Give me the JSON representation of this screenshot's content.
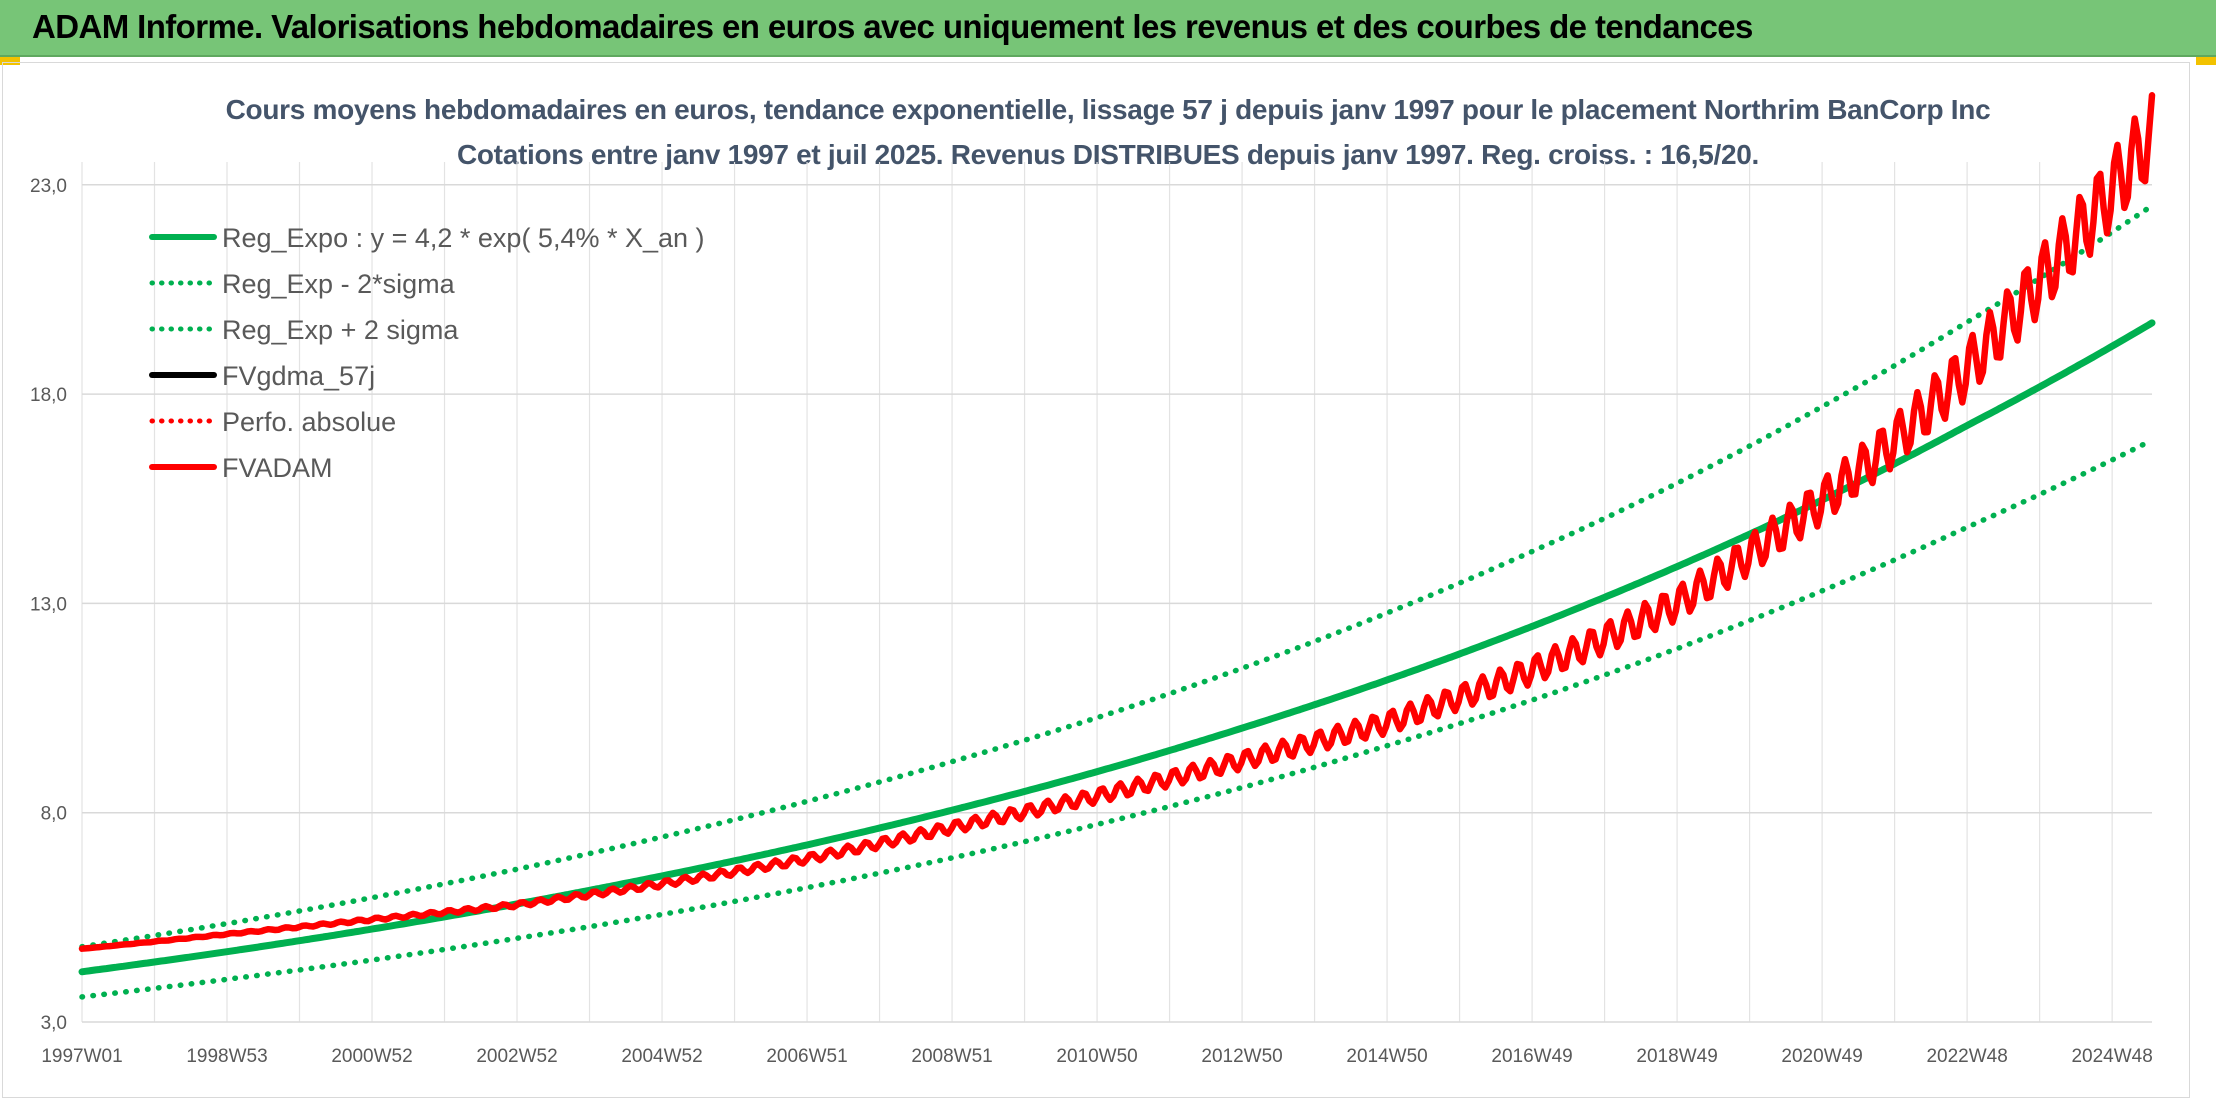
{
  "header": {
    "title": "ADAM Informe. Valorisations hebdomadaires en euros avec uniquement les revenus et des courbes de tendances"
  },
  "chart_data": {
    "type": "line",
    "title": "Cours moyens hebdomadaires en euros, tendance exponentielle, lissage 57 j depuis janv 1997 pour le placement Northrim BanCorp Inc",
    "subtitle": "Cotations entre janv 1997 et juil 2025. Revenus DISTRIBUES depuis janv 1997. Reg. croiss. : 16,5/20.",
    "xlabel": "",
    "ylabel": "",
    "x_range": [
      1997.0,
      2025.55
    ],
    "ylim": [
      3.0,
      24.5
    ],
    "y_ticks": [
      "3,0",
      "8,0",
      "13,0",
      "18,0",
      "23,0"
    ],
    "y_tick_values": [
      3,
      8,
      13,
      18,
      23
    ],
    "x_ticks": [
      "1997W01",
      "1998W53",
      "2000W52",
      "2002W52",
      "2004W52",
      "2006W51",
      "2008W51",
      "2010W50",
      "2012W50",
      "2014W50",
      "2016W49",
      "2018W49",
      "2020W49",
      "2022W48",
      "2024W48"
    ],
    "x_tick_values": [
      1997.0,
      1999.0,
      2001.0,
      2003.0,
      2005.0,
      2007.0,
      2009.0,
      2011.0,
      2013.0,
      2015.0,
      2017.0,
      2019.0,
      2021.0,
      2023.0,
      2025.0
    ],
    "grid": true,
    "legend_position": "top-left",
    "series": [
      {
        "name": "Reg_Expo : y = 4,2 * exp( 5,4% *  X_an )",
        "color": "#00b050",
        "style": "solid",
        "x": [
          1997,
          1999,
          2001,
          2003,
          2005,
          2007,
          2009,
          2011,
          2013,
          2015,
          2017,
          2019,
          2021,
          2023,
          2025.55
        ],
        "y": [
          4.2,
          4.68,
          5.22,
          5.82,
          6.49,
          7.23,
          8.06,
          8.98,
          10.02,
          11.17,
          12.45,
          13.88,
          15.47,
          17.25,
          19.7
        ]
      },
      {
        "name": "Reg_Exp - 2*sigma",
        "color": "#00b050",
        "style": "dotted",
        "x": [
          1997,
          1999,
          2001,
          2003,
          2005,
          2007,
          2009,
          2011,
          2013,
          2015,
          2017,
          2019,
          2021,
          2023,
          2025.55
        ],
        "y": [
          3.6,
          4.02,
          4.48,
          5.0,
          5.57,
          6.21,
          6.92,
          7.72,
          8.6,
          9.6,
          10.69,
          11.92,
          13.3,
          14.82,
          16.9
        ]
      },
      {
        "name": "Reg_Exp + 2 sigma",
        "color": "#00b050",
        "style": "dotted",
        "x": [
          1997,
          1999,
          2001,
          2003,
          2005,
          2007,
          2009,
          2011,
          2013,
          2015,
          2017,
          2019,
          2021,
          2023,
          2025.55
        ],
        "y": [
          4.8,
          5.35,
          5.97,
          6.65,
          7.42,
          8.27,
          9.22,
          10.27,
          11.45,
          12.77,
          14.24,
          15.87,
          17.7,
          19.72,
          22.5
        ]
      },
      {
        "name": "FVgdma_57j",
        "color": "#000000",
        "style": "solid",
        "x": [
          1997,
          1999,
          2001,
          2003,
          2005,
          2007,
          2009,
          2011,
          2013,
          2015,
          2017,
          2019,
          2021,
          2022,
          2023,
          2024,
          2025.55
        ],
        "y": [
          4.75,
          5.1,
          5.45,
          5.8,
          6.3,
          6.9,
          7.65,
          8.4,
          9.25,
          10.15,
          11.4,
          13.0,
          15.45,
          16.9,
          18.6,
          20.7,
          24.2
        ]
      },
      {
        "name": "Perfo. absolue",
        "color": "#ff0000",
        "style": "dotted",
        "x": [],
        "y": []
      },
      {
        "name": "FVADAM",
        "color": "#ff0000",
        "style": "solid",
        "x": [
          1997,
          1999,
          2001,
          2003,
          2005,
          2007,
          2009,
          2011,
          2013,
          2015,
          2017,
          2019,
          2021,
          2022,
          2023,
          2024,
          2025.55
        ],
        "y": [
          4.75,
          5.1,
          5.45,
          5.8,
          6.3,
          6.9,
          7.65,
          8.4,
          9.25,
          10.15,
          11.4,
          13.0,
          15.45,
          16.9,
          18.6,
          20.7,
          24.2
        ]
      }
    ]
  }
}
